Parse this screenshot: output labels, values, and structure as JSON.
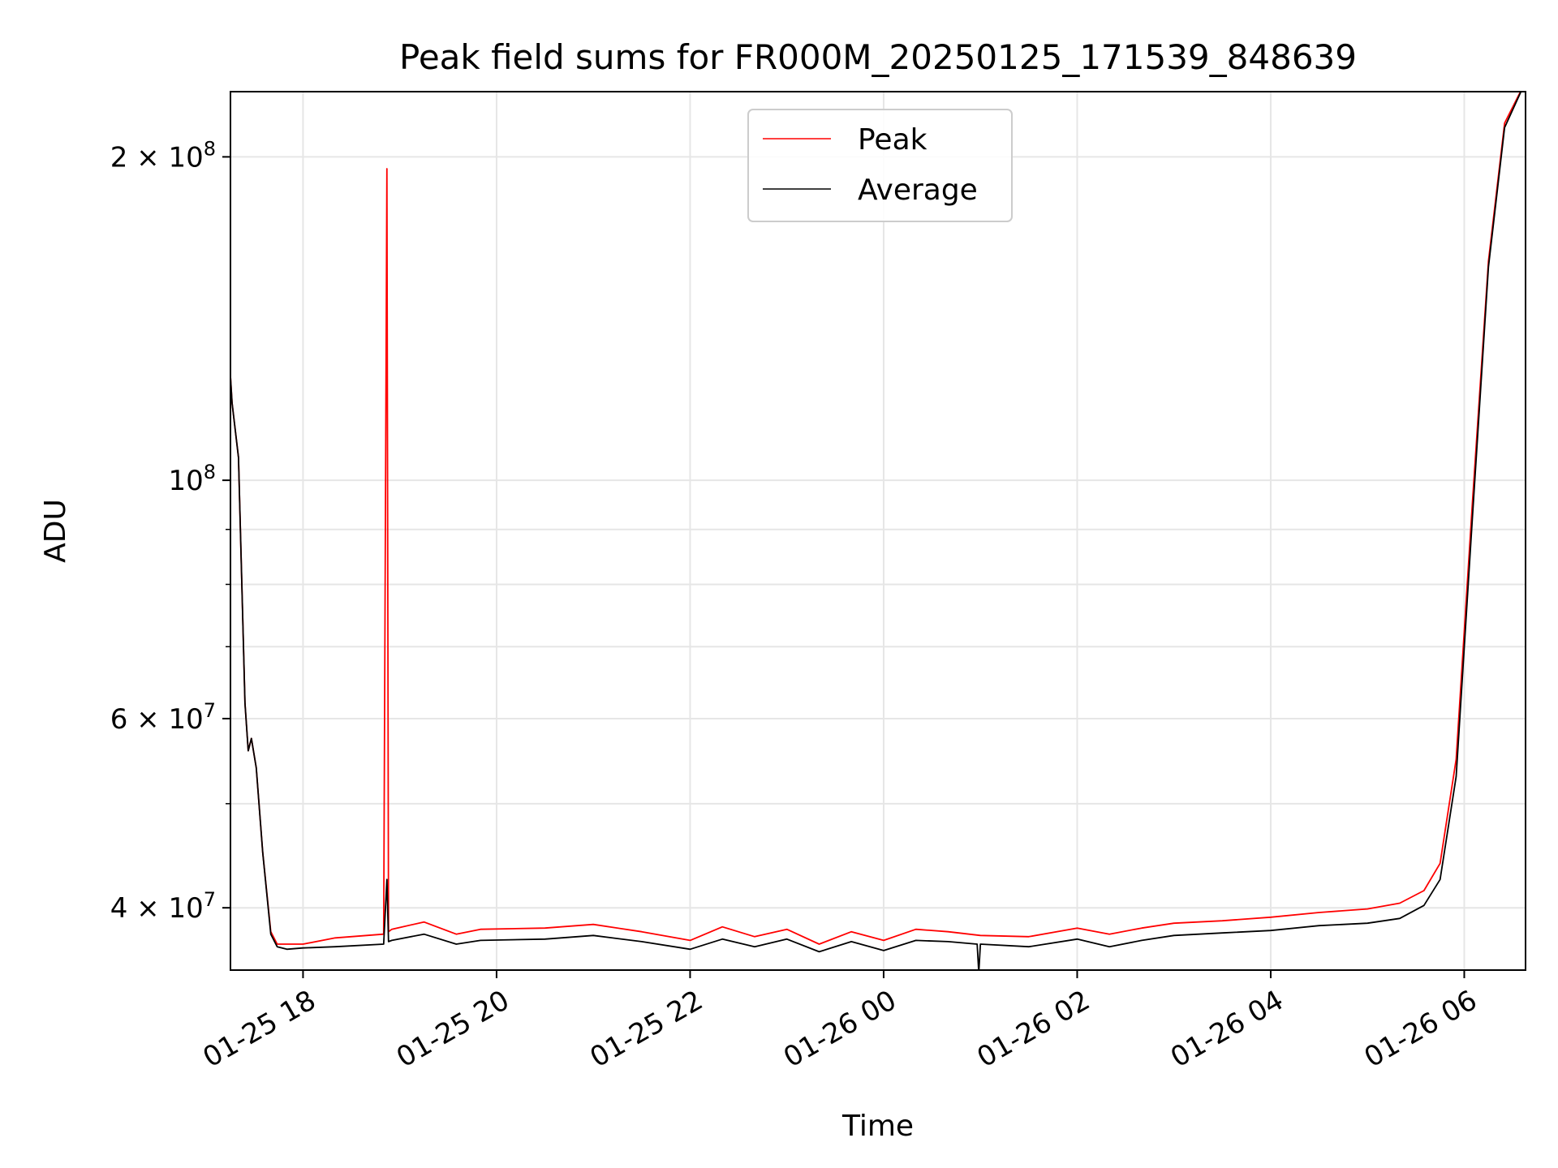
{
  "chart_data": {
    "type": "line",
    "title": "Peak field sums for FR000M_20250125_171539_848639",
    "xlabel": "Time",
    "ylabel": "ADU",
    "yscale": "log",
    "grid": true,
    "legend_position": "upper center",
    "xlim": [
      "2025-01-25 17:15",
      "2025-01-26 06:38"
    ],
    "ylim": [
      35000000,
      230000000
    ],
    "x_ticks": [
      {
        "value": "2025-01-25 18:00",
        "label": "01-25 18"
      },
      {
        "value": "2025-01-25 20:00",
        "label": "01-25 20"
      },
      {
        "value": "2025-01-25 22:00",
        "label": "01-25 22"
      },
      {
        "value": "2025-01-26 00:00",
        "label": "01-26 00"
      },
      {
        "value": "2025-01-26 02:00",
        "label": "01-26 02"
      },
      {
        "value": "2025-01-26 04:00",
        "label": "01-26 04"
      },
      {
        "value": "2025-01-26 06:00",
        "label": "01-26 06"
      }
    ],
    "y_ticks": [
      {
        "value": 40000000,
        "base": "4 × 10",
        "exp": "7"
      },
      {
        "value": 60000000,
        "base": "6 × 10",
        "exp": "7"
      },
      {
        "value": 100000000,
        "base": "10",
        "exp": "8"
      },
      {
        "value": 200000000,
        "base": "2 × 10",
        "exp": "8"
      }
    ],
    "series": [
      {
        "name": "Peak",
        "color": "#ff0000",
        "x": [
          "2025-01-25 17:15",
          "2025-01-25 17:16",
          "2025-01-25 17:20",
          "2025-01-25 17:24",
          "2025-01-25 17:26",
          "2025-01-25 17:28",
          "2025-01-25 17:31",
          "2025-01-25 17:35",
          "2025-01-25 17:40",
          "2025-01-25 17:44",
          "2025-01-25 17:50",
          "2025-01-25 18:00",
          "2025-01-25 18:20",
          "2025-01-25 18:50",
          "2025-01-25 18:52",
          "2025-01-25 18:53",
          "2025-01-25 18:55",
          "2025-01-25 19:15",
          "2025-01-25 19:35",
          "2025-01-25 19:50",
          "2025-01-25 20:30",
          "2025-01-25 21:00",
          "2025-01-25 21:30",
          "2025-01-25 22:00",
          "2025-01-25 22:20",
          "2025-01-25 22:40",
          "2025-01-25 23:00",
          "2025-01-25 23:20",
          "2025-01-25 23:40",
          "2025-01-26 00:00",
          "2025-01-26 00:20",
          "2025-01-26 00:40",
          "2025-01-26 01:00",
          "2025-01-26 01:30",
          "2025-01-26 02:00",
          "2025-01-26 02:20",
          "2025-01-26 02:40",
          "2025-01-26 03:00",
          "2025-01-26 03:30",
          "2025-01-26 04:00",
          "2025-01-26 04:30",
          "2025-01-26 05:00",
          "2025-01-26 05:20",
          "2025-01-26 05:35",
          "2025-01-26 05:45",
          "2025-01-26 05:55",
          "2025-01-26 06:05",
          "2025-01-26 06:15",
          "2025-01-26 06:25",
          "2025-01-26 06:38"
        ],
        "y": [
          125000000,
          118000000,
          105000000,
          62000000,
          56000000,
          57500000,
          54000000,
          45000000,
          38000000,
          37000000,
          37000000,
          37000000,
          37500000,
          37800000,
          195000000,
          38000000,
          38200000,
          38800000,
          37800000,
          38200000,
          38300000,
          38600000,
          38000000,
          37300000,
          38400000,
          37600000,
          38200000,
          37000000,
          38000000,
          37300000,
          38200000,
          38000000,
          37700000,
          37600000,
          38300000,
          37800000,
          38300000,
          38700000,
          38900000,
          39200000,
          39600000,
          39900000,
          40400000,
          41500000,
          44000000,
          55000000,
          95000000,
          160000000,
          215000000,
          235000000
        ]
      },
      {
        "name": "Average",
        "color": "#000000",
        "x": [
          "2025-01-25 17:15",
          "2025-01-25 17:16",
          "2025-01-25 17:20",
          "2025-01-25 17:24",
          "2025-01-25 17:26",
          "2025-01-25 17:28",
          "2025-01-25 17:31",
          "2025-01-25 17:35",
          "2025-01-25 17:40",
          "2025-01-25 17:44",
          "2025-01-25 17:50",
          "2025-01-25 18:00",
          "2025-01-25 18:20",
          "2025-01-25 18:50",
          "2025-01-25 18:52",
          "2025-01-25 18:53",
          "2025-01-25 18:55",
          "2025-01-25 19:15",
          "2025-01-25 19:35",
          "2025-01-25 19:50",
          "2025-01-25 20:30",
          "2025-01-25 21:00",
          "2025-01-25 21:30",
          "2025-01-25 22:00",
          "2025-01-25 22:20",
          "2025-01-25 22:40",
          "2025-01-25 23:00",
          "2025-01-25 23:20",
          "2025-01-25 23:40",
          "2025-01-26 00:00",
          "2025-01-26 00:20",
          "2025-01-26 00:40",
          "2025-01-26 00:58",
          "2025-01-26 00:59",
          "2025-01-26 01:00",
          "2025-01-26 01:30",
          "2025-01-26 02:00",
          "2025-01-26 02:20",
          "2025-01-26 02:40",
          "2025-01-26 03:00",
          "2025-01-26 03:30",
          "2025-01-26 04:00",
          "2025-01-26 04:30",
          "2025-01-26 05:00",
          "2025-01-26 05:20",
          "2025-01-26 05:35",
          "2025-01-26 05:45",
          "2025-01-26 05:55",
          "2025-01-26 06:05",
          "2025-01-26 06:15",
          "2025-01-26 06:25",
          "2025-01-26 06:38"
        ],
        "y": [
          125000000,
          118000000,
          105000000,
          62000000,
          56000000,
          57500000,
          54000000,
          45000000,
          37800000,
          36800000,
          36600000,
          36700000,
          36800000,
          37000000,
          42500000,
          37200000,
          37300000,
          37800000,
          37000000,
          37300000,
          37400000,
          37700000,
          37200000,
          36600000,
          37400000,
          36800000,
          37400000,
          36400000,
          37200000,
          36500000,
          37300000,
          37200000,
          37000000,
          34800000,
          37000000,
          36800000,
          37400000,
          36800000,
          37300000,
          37700000,
          37900000,
          38100000,
          38500000,
          38700000,
          39100000,
          40200000,
          42500000,
          53000000,
          92000000,
          158000000,
          213000000,
          235000000
        ]
      }
    ]
  }
}
